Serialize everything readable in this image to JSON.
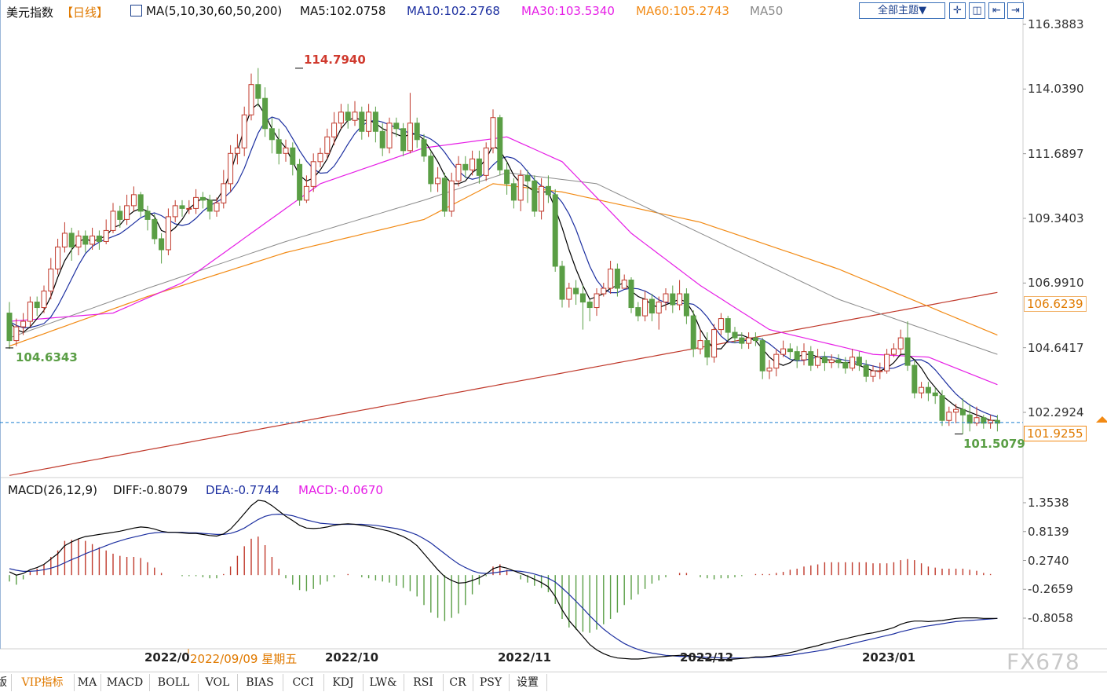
{
  "header": {
    "name": "美元指数",
    "period": "【日线】",
    "ma_label": "MA(5,10,30,60,50,200)",
    "ma5": "MA5:102.0758",
    "ma10": "MA10:102.2768",
    "ma30": "MA30:103.5340",
    "ma60": "MA60:105.2743",
    "ma50": "MA50",
    "theme_button": "全部主题▼"
  },
  "macd_header": {
    "label": "MACD(26,12,9)",
    "diff": "DIFF:-0.8079",
    "dea": "DEA:-0.7744",
    "macd": "MACD:-0.0670"
  },
  "price_axis": [
    "116.3883",
    "114.0390",
    "111.6897",
    "109.3403",
    "106.9910",
    "104.6417",
    "102.2924"
  ],
  "price_tags": {
    "ma60_tag": "106.6239",
    "current_tag": "101.9255",
    "high_label": "114.7940",
    "low_left_label": "104.6343",
    "low_right_label": "101.5079"
  },
  "macd_axis": [
    "1.3538",
    "0.8139",
    "0.2740",
    "-0.2659",
    "-0.8058"
  ],
  "date_labels": {
    "d1": "2022/0",
    "crosshair": "2022/09/09 星期五",
    "d2": "2022/10",
    "d3": "2022/11",
    "d4": "2022/12",
    "d5": "2023/01"
  },
  "tabs": [
    "版",
    "VIP指标",
    "MA",
    "MACD",
    "BOLL",
    "VOL",
    "BIAS",
    "CCI",
    "KDJ",
    "LW&",
    "RSI",
    "CR",
    "PSY",
    "设置"
  ],
  "watermark": "FX678",
  "colors": {
    "up": "#c0392b",
    "down": "#5a9e45",
    "ma5": "#000000",
    "ma10": "#1c2fa0",
    "ma30": "#e61ee6",
    "ma60": "#f28a14",
    "ma50": "#8a8a8a",
    "ma200": "#c0392b",
    "current_line": "#1a7fd0"
  },
  "chart_data": {
    "type": "candlestick",
    "symbol": "美元指数",
    "y_range": [
      100.3,
      116.8
    ],
    "current_price": 101.9255,
    "ma60_value": 106.6239,
    "high": 114.794,
    "low_left": 104.6343,
    "low_right": 101.5079,
    "candles": [
      [
        105.9,
        104.9,
        106.3,
        104.6
      ],
      [
        104.9,
        105.4,
        105.7,
        104.7
      ],
      [
        105.4,
        105.6,
        105.9,
        105.1
      ],
      [
        105.6,
        106.3,
        106.5,
        105.4
      ],
      [
        106.3,
        106.1,
        106.5,
        105.8
      ],
      [
        106.1,
        106.7,
        106.9,
        105.9
      ],
      [
        106.7,
        107.5,
        107.9,
        106.4
      ],
      [
        107.5,
        108.3,
        108.6,
        107.3
      ],
      [
        108.3,
        108.8,
        109.2,
        108.1
      ],
      [
        108.8,
        108.3,
        109.0,
        107.8
      ],
      [
        108.3,
        108.7,
        108.9,
        108.0
      ],
      [
        108.7,
        108.4,
        108.9,
        108.1
      ],
      [
        108.4,
        108.7,
        109.0,
        108.2
      ],
      [
        108.7,
        108.5,
        108.9,
        108.2
      ],
      [
        108.5,
        108.9,
        109.3,
        108.4
      ],
      [
        108.9,
        109.6,
        109.9,
        108.8
      ],
      [
        109.6,
        109.3,
        109.8,
        109.0
      ],
      [
        109.3,
        109.8,
        110.2,
        109.1
      ],
      [
        109.8,
        110.2,
        110.5,
        109.6
      ],
      [
        110.2,
        109.6,
        110.3,
        109.4
      ],
      [
        109.6,
        109.3,
        109.8,
        108.9
      ],
      [
        109.3,
        108.6,
        109.5,
        108.4
      ],
      [
        108.6,
        108.2,
        108.8,
        107.7
      ],
      [
        108.2,
        109.4,
        109.7,
        108.0
      ],
      [
        109.4,
        109.8,
        110.0,
        109.2
      ],
      [
        109.8,
        109.7,
        110.0,
        109.4
      ],
      [
        109.7,
        109.7,
        110.0,
        109.5
      ],
      [
        109.7,
        110.1,
        110.4,
        109.5
      ],
      [
        110.1,
        110.0,
        110.3,
        109.7
      ],
      [
        110.0,
        109.6,
        110.2,
        109.3
      ],
      [
        109.6,
        109.9,
        110.1,
        109.4
      ],
      [
        109.9,
        110.6,
        111.1,
        109.7
      ],
      [
        110.6,
        111.7,
        112.0,
        110.3
      ],
      [
        111.7,
        111.9,
        112.4,
        111.3
      ],
      [
        111.9,
        113.1,
        113.4,
        111.6
      ],
      [
        113.1,
        114.2,
        114.6,
        112.9
      ],
      [
        114.2,
        113.7,
        114.8,
        113.4
      ],
      [
        113.7,
        112.6,
        114.1,
        112.3
      ],
      [
        112.6,
        112.2,
        113.0,
        111.7
      ],
      [
        112.2,
        111.7,
        112.6,
        111.3
      ],
      [
        111.7,
        111.9,
        112.2,
        111.4
      ],
      [
        111.9,
        111.3,
        112.1,
        110.9
      ],
      [
        111.3,
        110.0,
        111.5,
        109.8
      ],
      [
        110.0,
        110.5,
        110.9,
        109.9
      ],
      [
        110.5,
        111.4,
        111.7,
        110.3
      ],
      [
        111.4,
        111.7,
        111.9,
        111.2
      ],
      [
        111.7,
        112.3,
        112.6,
        111.5
      ],
      [
        112.3,
        112.8,
        113.2,
        112.0
      ],
      [
        112.8,
        113.2,
        113.5,
        112.6
      ],
      [
        113.2,
        112.9,
        113.5,
        112.6
      ],
      [
        112.9,
        113.2,
        113.6,
        112.7
      ],
      [
        113.2,
        112.5,
        113.4,
        112.2
      ],
      [
        112.5,
        113.2,
        113.5,
        112.3
      ],
      [
        113.2,
        112.5,
        113.4,
        112.1
      ],
      [
        112.5,
        111.9,
        112.8,
        111.6
      ],
      [
        111.9,
        112.8,
        113.0,
        111.7
      ],
      [
        112.8,
        112.6,
        113.0,
        112.3
      ],
      [
        112.6,
        111.8,
        112.8,
        111.6
      ],
      [
        111.8,
        112.8,
        113.9,
        111.7
      ],
      [
        112.8,
        112.2,
        113.0,
        111.9
      ],
      [
        112.2,
        111.6,
        112.4,
        111.4
      ],
      [
        111.6,
        110.6,
        111.8,
        110.3
      ],
      [
        110.6,
        110.8,
        111.2,
        110.3
      ],
      [
        110.8,
        109.6,
        111.0,
        109.4
      ],
      [
        109.6,
        110.7,
        111.0,
        109.4
      ],
      [
        110.7,
        111.3,
        111.6,
        110.5
      ],
      [
        111.3,
        111.1,
        111.6,
        110.8
      ],
      [
        111.1,
        111.5,
        111.8,
        110.9
      ],
      [
        111.5,
        110.9,
        111.8,
        110.6
      ],
      [
        110.9,
        111.9,
        112.1,
        110.7
      ],
      [
        111.9,
        113.0,
        113.3,
        111.7
      ],
      [
        113.0,
        111.1,
        113.1,
        110.9
      ],
      [
        111.1,
        110.6,
        111.4,
        110.2
      ],
      [
        110.6,
        110.0,
        110.8,
        109.7
      ],
      [
        110.0,
        110.9,
        111.1,
        109.6
      ],
      [
        110.9,
        110.7,
        111.1,
        109.9
      ],
      [
        110.7,
        109.6,
        110.9,
        109.4
      ],
      [
        109.6,
        110.5,
        110.8,
        109.3
      ],
      [
        110.5,
        110.2,
        110.9,
        109.9
      ],
      [
        110.2,
        107.6,
        110.4,
        107.4
      ],
      [
        107.6,
        106.4,
        107.8,
        106.1
      ],
      [
        106.4,
        106.8,
        107.0,
        106.1
      ],
      [
        106.8,
        106.6,
        107.1,
        106.2
      ],
      [
        106.6,
        106.3,
        106.9,
        105.3
      ],
      [
        106.3,
        106.1,
        106.4,
        105.6
      ],
      [
        106.1,
        106.6,
        106.8,
        105.8
      ],
      [
        106.6,
        106.8,
        107.0,
        106.5
      ],
      [
        106.8,
        107.5,
        107.8,
        106.6
      ],
      [
        107.5,
        106.8,
        107.7,
        106.5
      ],
      [
        106.8,
        107.1,
        107.3,
        106.8
      ],
      [
        107.1,
        106.1,
        107.2,
        105.9
      ],
      [
        106.1,
        105.8,
        106.3,
        105.6
      ],
      [
        105.8,
        106.4,
        106.7,
        105.6
      ],
      [
        106.4,
        105.9,
        106.6,
        105.6
      ],
      [
        105.9,
        106.3,
        106.5,
        105.3
      ],
      [
        106.3,
        106.6,
        106.8,
        106.0
      ],
      [
        106.6,
        106.2,
        106.9,
        105.9
      ],
      [
        106.2,
        106.6,
        107.1,
        106.0
      ],
      [
        106.6,
        105.8,
        106.8,
        105.5
      ],
      [
        105.8,
        104.6,
        106.0,
        104.3
      ],
      [
        104.6,
        104.9,
        105.3,
        104.4
      ],
      [
        104.9,
        104.3,
        105.2,
        104.0
      ],
      [
        104.3,
        105.3,
        105.5,
        104.1
      ],
      [
        105.3,
        105.7,
        105.9,
        105.1
      ],
      [
        105.7,
        105.2,
        105.8,
        104.9
      ],
      [
        105.2,
        105.0,
        105.4,
        104.8
      ],
      [
        105.0,
        104.8,
        105.2,
        104.6
      ],
      [
        104.8,
        105.0,
        105.2,
        104.6
      ],
      [
        105.0,
        104.9,
        105.2,
        104.7
      ],
      [
        104.9,
        103.8,
        105.0,
        103.5
      ],
      [
        103.8,
        103.9,
        104.2,
        103.5
      ],
      [
        103.9,
        104.4,
        104.6,
        103.6
      ],
      [
        104.4,
        104.6,
        104.9,
        104.3
      ],
      [
        104.6,
        104.5,
        104.8,
        104.2
      ],
      [
        104.5,
        104.2,
        104.7,
        103.9
      ],
      [
        104.2,
        104.5,
        104.8,
        104.0
      ],
      [
        104.5,
        104.0,
        104.7,
        103.8
      ],
      [
        104.0,
        104.3,
        104.6,
        103.9
      ],
      [
        104.3,
        104.1,
        104.5,
        103.8
      ],
      [
        104.1,
        104.2,
        104.4,
        103.9
      ],
      [
        104.2,
        104.1,
        104.4,
        103.9
      ],
      [
        104.1,
        103.9,
        104.3,
        103.7
      ],
      [
        103.9,
        104.3,
        104.6,
        103.8
      ],
      [
        104.3,
        104.0,
        104.5,
        103.8
      ],
      [
        104.0,
        103.6,
        104.2,
        103.4
      ],
      [
        103.6,
        103.8,
        104.0,
        103.4
      ],
      [
        103.8,
        103.8,
        104.1,
        103.5
      ],
      [
        103.8,
        104.4,
        104.6,
        103.7
      ],
      [
        104.4,
        104.6,
        104.8,
        104.3
      ],
      [
        104.6,
        105.0,
        105.3,
        104.4
      ],
      [
        105.0,
        104.0,
        105.6,
        103.8
      ],
      [
        104.0,
        103.0,
        104.2,
        102.8
      ],
      [
        103.0,
        103.2,
        103.4,
        102.8
      ],
      [
        103.2,
        103.0,
        103.4,
        102.7
      ],
      [
        103.0,
        102.9,
        103.2,
        102.6
      ],
      [
        102.9,
        102.0,
        103.1,
        101.8
      ],
      [
        102.0,
        102.3,
        102.5,
        101.8
      ],
      [
        102.3,
        102.4,
        102.6,
        101.9
      ],
      [
        102.4,
        102.2,
        102.8,
        101.5
      ],
      [
        102.2,
        101.9,
        102.6,
        101.6
      ],
      [
        101.9,
        102.1,
        102.5,
        101.8
      ],
      [
        102.1,
        101.9,
        102.2,
        101.7
      ],
      [
        101.9,
        102.0,
        102.2,
        101.7
      ],
      [
        102.0,
        101.9,
        102.2,
        101.6
      ]
    ],
    "ma5": [
      105.6,
      105.3,
      105.2,
      105.4,
      105.7,
      106.0,
      106.5,
      107.2,
      107.8,
      108.2,
      108.5,
      108.6,
      108.5,
      108.6,
      108.7,
      109.0,
      109.1,
      109.4,
      109.6,
      109.7,
      109.6,
      109.4,
      108.9,
      108.8,
      109.0,
      109.3,
      109.7,
      109.9,
      110.1,
      110.0,
      110.0,
      110.4,
      111.0,
      111.8,
      112.6,
      113.3,
      113.5,
      113.1,
      112.6,
      112.2,
      111.9,
      111.4,
      110.9,
      110.7,
      110.8,
      111.1,
      111.5,
      112.1,
      112.6,
      112.9,
      113.0,
      112.9,
      112.9,
      112.8,
      112.6,
      112.5,
      112.4,
      112.3,
      112.4,
      112.4,
      112.2,
      111.8,
      111.4,
      110.9,
      110.6,
      110.6,
      110.7,
      111.0,
      111.2,
      111.5,
      112.0,
      111.8,
      111.4,
      110.9,
      110.6,
      110.5,
      110.3,
      110.3,
      110.3,
      109.7,
      109.0,
      108.2,
      107.5,
      106.9,
      106.4,
      106.5,
      106.6,
      106.8,
      106.9,
      107.0,
      106.7,
      106.5,
      106.4,
      106.2,
      106.1,
      106.2,
      106.3,
      106.4,
      106.3,
      105.9,
      105.3,
      104.9,
      104.6,
      104.6,
      104.9,
      105.1,
      105.1,
      105.0,
      104.9,
      104.6,
      104.3,
      104.1,
      104.0,
      104.1,
      104.3,
      104.4,
      104.4,
      104.3,
      104.2,
      104.2,
      104.1,
      104.1,
      104.1,
      104.0,
      103.9,
      103.8,
      103.8,
      103.9,
      104.1,
      104.4,
      104.4,
      104.2,
      103.9,
      103.5,
      103.2,
      102.9,
      102.7,
      102.5,
      102.4,
      102.3,
      102.2,
      102.1,
      102.0,
      102.0
    ]
  },
  "macd_data": {
    "y_range": [
      -1.75,
      1.6
    ],
    "diff": [
      0.06,
      0.0,
      0.03,
      0.1,
      0.14,
      0.2,
      0.3,
      0.4,
      0.55,
      0.62,
      0.68,
      0.72,
      0.74,
      0.76,
      0.78,
      0.8,
      0.82,
      0.85,
      0.88,
      0.9,
      0.89,
      0.86,
      0.82,
      0.8,
      0.8,
      0.79,
      0.78,
      0.78,
      0.76,
      0.74,
      0.73,
      0.77,
      0.86,
      1.0,
      1.15,
      1.3,
      1.4,
      1.38,
      1.3,
      1.2,
      1.1,
      1.02,
      0.93,
      0.88,
      0.87,
      0.88,
      0.9,
      0.93,
      0.95,
      0.96,
      0.95,
      0.93,
      0.91,
      0.88,
      0.85,
      0.82,
      0.77,
      0.72,
      0.65,
      0.55,
      0.4,
      0.25,
      0.1,
      -0.03,
      -0.1,
      -0.15,
      -0.14,
      -0.1,
      -0.05,
      0.02,
      0.12,
      0.16,
      0.13,
      0.08,
      0.03,
      -0.02,
      -0.08,
      -0.14,
      -0.22,
      -0.4,
      -0.65,
      -0.85,
      -1.0,
      -1.15,
      -1.3,
      -1.4,
      -1.47,
      -1.52,
      -1.55,
      -1.56,
      -1.57,
      -1.57,
      -1.56,
      -1.54,
      -1.53,
      -1.52,
      -1.51,
      -1.5,
      -1.5,
      -1.52,
      -1.55,
      -1.57,
      -1.58,
      -1.58,
      -1.58,
      -1.57,
      -1.56,
      -1.55,
      -1.53,
      -1.53,
      -1.52,
      -1.5,
      -1.48,
      -1.45,
      -1.42,
      -1.38,
      -1.35,
      -1.32,
      -1.28,
      -1.25,
      -1.22,
      -1.19,
      -1.16,
      -1.13,
      -1.1,
      -1.08,
      -1.05,
      -1.02,
      -0.98,
      -0.92,
      -0.88,
      -0.86,
      -0.86,
      -0.87,
      -0.86,
      -0.85,
      -0.83,
      -0.81,
      -0.8,
      -0.8,
      -0.8,
      -0.81,
      -0.81,
      -0.81
    ],
    "dea": [
      0.12,
      0.09,
      0.07,
      0.07,
      0.08,
      0.1,
      0.13,
      0.17,
      0.23,
      0.29,
      0.34,
      0.4,
      0.45,
      0.5,
      0.55,
      0.6,
      0.64,
      0.68,
      0.71,
      0.74,
      0.77,
      0.79,
      0.8,
      0.8,
      0.8,
      0.8,
      0.79,
      0.79,
      0.78,
      0.77,
      0.76,
      0.76,
      0.78,
      0.82,
      0.88,
      0.96,
      1.04,
      1.1,
      1.13,
      1.14,
      1.13,
      1.11,
      1.07,
      1.03,
      1.0,
      0.97,
      0.96,
      0.95,
      0.95,
      0.95,
      0.95,
      0.95,
      0.94,
      0.93,
      0.91,
      0.89,
      0.87,
      0.84,
      0.8,
      0.75,
      0.68,
      0.6,
      0.5,
      0.4,
      0.3,
      0.21,
      0.14,
      0.08,
      0.04,
      0.03,
      0.04,
      0.06,
      0.08,
      0.08,
      0.07,
      0.05,
      0.02,
      -0.02,
      -0.06,
      -0.13,
      -0.24,
      -0.36,
      -0.49,
      -0.62,
      -0.76,
      -0.89,
      -1.01,
      -1.11,
      -1.2,
      -1.28,
      -1.34,
      -1.39,
      -1.43,
      -1.46,
      -1.48,
      -1.5,
      -1.51,
      -1.52,
      -1.52,
      -1.52,
      -1.53,
      -1.54,
      -1.54,
      -1.55,
      -1.55,
      -1.55,
      -1.55,
      -1.55,
      -1.54,
      -1.54,
      -1.53,
      -1.52,
      -1.51,
      -1.5,
      -1.48,
      -1.46,
      -1.44,
      -1.42,
      -1.4,
      -1.37,
      -1.34,
      -1.31,
      -1.28,
      -1.25,
      -1.22,
      -1.19,
      -1.16,
      -1.13,
      -1.1,
      -1.06,
      -1.03,
      -1.0,
      -0.97,
      -0.95,
      -0.93,
      -0.91,
      -0.89,
      -0.87,
      -0.86,
      -0.85,
      -0.84,
      -0.83,
      -0.82,
      -0.81
    ]
  }
}
